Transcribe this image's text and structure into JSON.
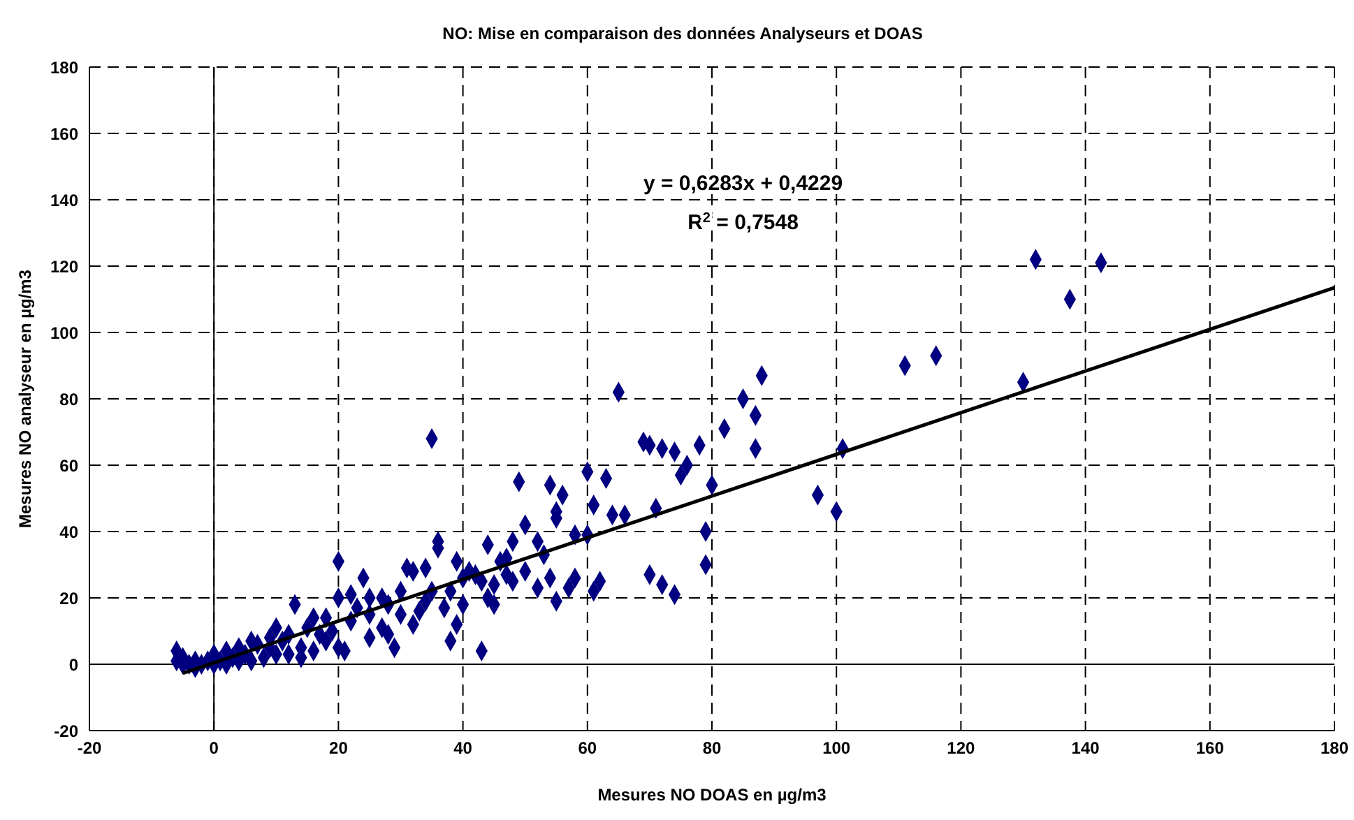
{
  "chart_data": {
    "type": "scatter",
    "title": "NO: Mise en comparaison des données Analyseurs et DOAS",
    "xlabel": "Mesures NO DOAS en µg/m3",
    "ylabel": "Mesures NO analyseur en µg/m3",
    "annotations": [
      "y = 0,6283x + 0,4229",
      "R$^{2}$ = 0,7548"
    ],
    "xlim": [
      -20,
      180
    ],
    "ylim": [
      -20,
      180
    ],
    "xticks": [
      -20,
      0,
      20,
      40,
      60,
      80,
      100,
      120,
      140,
      160,
      180
    ],
    "yticks": [
      -20,
      0,
      20,
      40,
      60,
      80,
      100,
      120,
      140,
      160,
      180
    ],
    "grid": true,
    "marker": "diamond",
    "series": [
      {
        "type": "scatter",
        "color": "#000080",
        "x": [
          132,
          137.5,
          142.5,
          111,
          116,
          130,
          101,
          100,
          97,
          88,
          87,
          87,
          85,
          82,
          80,
          79,
          79,
          78,
          76,
          74,
          72,
          71,
          70,
          69,
          75,
          72,
          74,
          70,
          65,
          64,
          66,
          63,
          61,
          62,
          60,
          60,
          61,
          58,
          56,
          55,
          55,
          54,
          54,
          55,
          53,
          52,
          50,
          49,
          48,
          47,
          45,
          44,
          43,
          42,
          41,
          40,
          39,
          38,
          36,
          36,
          35,
          35,
          34,
          32,
          30,
          28,
          27,
          25,
          24,
          22,
          20,
          20,
          19,
          18,
          17,
          16,
          15,
          13,
          12,
          11,
          10,
          9,
          8,
          7,
          6,
          5,
          4,
          3,
          2,
          1,
          0,
          -1,
          -2,
          -3,
          -4,
          -5,
          -6,
          -6,
          -5,
          -3,
          0,
          2,
          4,
          6,
          9,
          12,
          14,
          16,
          18,
          20,
          22,
          25,
          27,
          28,
          30,
          32,
          34,
          37,
          40,
          43,
          45,
          47,
          50,
          52,
          57,
          58,
          46,
          48,
          38,
          25,
          29,
          10,
          14,
          21,
          23,
          33,
          39,
          44,
          31
        ],
        "values": [
          122,
          110,
          121,
          90,
          93,
          85,
          65,
          46,
          51,
          87,
          75,
          65,
          80,
          71,
          54,
          40,
          30,
          66,
          60,
          64,
          65,
          47,
          66,
          67,
          57,
          24,
          21,
          27,
          82,
          45,
          45,
          56,
          48,
          25,
          58,
          39,
          22,
          39,
          51,
          46,
          44,
          54,
          26,
          19,
          33,
          37,
          42,
          55,
          37,
          32,
          24,
          20,
          4,
          27,
          28,
          26,
          31,
          22,
          37,
          35,
          68,
          22,
          29,
          28,
          22,
          18,
          11,
          20,
          26,
          21,
          31,
          20,
          10,
          14,
          9,
          4,
          11,
          18,
          9,
          7,
          3,
          5,
          2,
          6,
          1,
          3,
          1,
          2,
          0,
          1,
          0,
          1,
          0,
          1,
          0,
          0,
          1,
          4,
          2,
          -1,
          3,
          4,
          5,
          7,
          8,
          3,
          5,
          14,
          7,
          5,
          13,
          15,
          20,
          9,
          15,
          12,
          19,
          17,
          18,
          25,
          18,
          27,
          28,
          23,
          23,
          26,
          31,
          25,
          7,
          8,
          5,
          11,
          2,
          4,
          17,
          16,
          12,
          36,
          29
        ]
      },
      {
        "type": "line",
        "color": "#000000",
        "marker": "none",
        "x": [
          -5,
          180
        ],
        "values": [
          -2.7,
          113.5
        ]
      }
    ]
  }
}
